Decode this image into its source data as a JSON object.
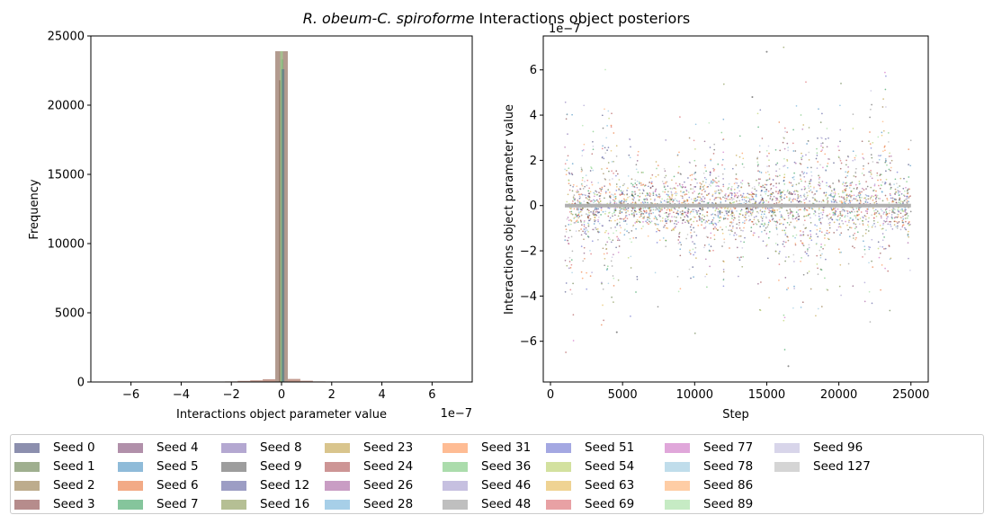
{
  "chart_data": [
    {
      "type": "histogram",
      "suptitle_italic": "R. obeum-C. spiroforme",
      "suptitle_rest": " Interactions object posteriors",
      "xlabel": "Interactions object parameter value",
      "ylabel": "Frequency",
      "x_offset_text": "1e−7",
      "xlim": [
        -7.6,
        7.6
      ],
      "ylim": [
        0,
        25000
      ],
      "xticks": [
        -6,
        -4,
        -2,
        0,
        2,
        4,
        6
      ],
      "xtick_labels": [
        "−6",
        "−4",
        "−2",
        "0",
        "2",
        "4",
        "6"
      ],
      "yticks": [
        0,
        5000,
        10000,
        15000,
        20000,
        25000
      ],
      "ytick_labels": [
        "0",
        "5000",
        "10000",
        "15000",
        "20000",
        "25000"
      ],
      "bins": [
        {
          "x": -2.0,
          "height": 40
        },
        {
          "x": -1.5,
          "height": 80
        },
        {
          "x": -1.0,
          "height": 120
        },
        {
          "x": -0.5,
          "height": 200
        },
        {
          "x": 0.0,
          "height": 23900
        },
        {
          "x": 0.5,
          "height": 220
        },
        {
          "x": 1.0,
          "height": 90
        },
        {
          "x": 1.5,
          "height": 40
        }
      ],
      "peak_heights": [
        21800,
        23300,
        23900,
        22600
      ]
    },
    {
      "type": "scatter",
      "xlabel": "Step",
      "ylabel": "Interactions object parameter value",
      "y_offset_text": "1e−7",
      "xlim": [
        -500,
        26200
      ],
      "ylim": [
        -7.8,
        7.5
      ],
      "xticks": [
        0,
        5000,
        10000,
        15000,
        20000,
        25000
      ],
      "xtick_labels": [
        "0",
        "5000",
        "10000",
        "15000",
        "20000",
        "25000"
      ],
      "yticks": [
        -6,
        -4,
        -2,
        0,
        2,
        4,
        6
      ],
      "ytick_labels": [
        "−6",
        "−4",
        "−2",
        "0",
        "2",
        "4",
        "6"
      ],
      "step_range": [
        1000,
        25000
      ],
      "mean_line_value": 0,
      "notable_points": [
        {
          "x": 15000,
          "y": 6.8
        },
        {
          "x": 4600,
          "y": -5.6
        },
        {
          "x": 16500,
          "y": -7.1
        },
        {
          "x": 14000,
          "y": 4.8
        }
      ]
    }
  ],
  "legend": {
    "items": [
      {
        "label": "Seed 0",
        "color": "#1a1f5e"
      },
      {
        "label": "Seed 1",
        "color": "#3f5f1f"
      },
      {
        "label": "Seed 2",
        "color": "#7b5a1c"
      },
      {
        "label": "Seed 3",
        "color": "#6e1a1a"
      },
      {
        "label": "Seed 4",
        "color": "#642256"
      },
      {
        "label": "Seed 5",
        "color": "#1f77b4"
      },
      {
        "label": "Seed 6",
        "color": "#e6550d"
      },
      {
        "label": "Seed 7",
        "color": "#0b8c3a"
      },
      {
        "label": "Seed 8",
        "color": "#6a51a3"
      },
      {
        "label": "Seed 9",
        "color": "#3c3c3c"
      },
      {
        "label": "Seed 12",
        "color": "#393b8a"
      },
      {
        "label": "Seed 16",
        "color": "#6b7f2a"
      },
      {
        "label": "Seed 23",
        "color": "#b48c1c"
      },
      {
        "label": "Seed 24",
        "color": "#9c2c2c"
      },
      {
        "label": "Seed 26",
        "color": "#933b8a"
      },
      {
        "label": "Seed 28",
        "color": "#4fa0d2"
      },
      {
        "label": "Seed 31",
        "color": "#fd7a2a"
      },
      {
        "label": "Seed 36",
        "color": "#58b95a"
      },
      {
        "label": "Seed 46",
        "color": "#8e82c2"
      },
      {
        "label": "Seed 48",
        "color": "#7f7f7f"
      },
      {
        "label": "Seed 51",
        "color": "#4a52c6"
      },
      {
        "label": "Seed 54",
        "color": "#a8c440"
      },
      {
        "label": "Seed 63",
        "color": "#e0a828"
      },
      {
        "label": "Seed 69",
        "color": "#d1434a"
      },
      {
        "label": "Seed 77",
        "color": "#c24fb6"
      },
      {
        "label": "Seed 78",
        "color": "#82bcd8"
      },
      {
        "label": "Seed 86",
        "color": "#fd9b4c"
      },
      {
        "label": "Seed 89",
        "color": "#8ed88a"
      },
      {
        "label": "Seed 96",
        "color": "#b1abd6"
      },
      {
        "label": "Seed 127",
        "color": "#acacac"
      }
    ]
  }
}
